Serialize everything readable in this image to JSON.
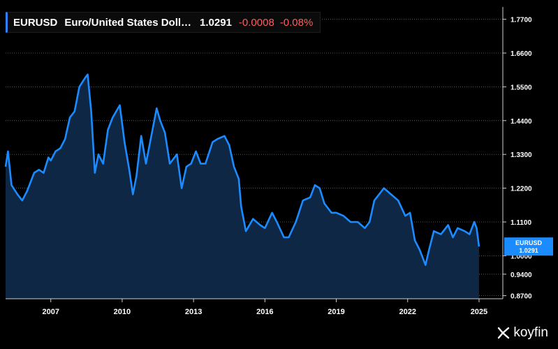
{
  "header": {
    "ticker": "EURUSD",
    "name": "Euro/United States Doll…",
    "price": "1.0291",
    "change": "-0.0008",
    "change_pct": "-0.08%"
  },
  "price_tag": {
    "label": "EURUSD",
    "value": "1.0291"
  },
  "brand": {
    "name": "koyfin"
  },
  "colors": {
    "line": "#1a8cff",
    "area": "#0d2745",
    "negative": "#ff5d5d",
    "tag": "#1a8cff"
  },
  "chart_data": {
    "type": "area",
    "title": "",
    "xlabel": "",
    "ylabel": "",
    "x_ticks": [
      "2007",
      "2010",
      "2013",
      "2016",
      "2019",
      "2022",
      "2025"
    ],
    "y_ticks": [
      "1.7700",
      "1.6600",
      "1.5500",
      "1.4400",
      "1.3300",
      "1.2200",
      "1.1100",
      "1.0000",
      "0.9400",
      "0.8700"
    ],
    "xlim": [
      2005.1,
      2026.0
    ],
    "ylim": [
      0.86,
      1.81
    ],
    "grid": true,
    "series": [
      {
        "x": [
          2005.1,
          2005.2,
          2005.35,
          2005.6,
          2005.8,
          2006.0,
          2006.3,
          2006.5,
          2006.7,
          2006.9,
          2007.0,
          2007.2,
          2007.4,
          2007.6,
          2007.8,
          2008.0,
          2008.2,
          2008.45,
          2008.55,
          2008.7,
          2008.85,
          2009.0,
          2009.2,
          2009.4,
          2009.6,
          2009.9,
          2010.1,
          2010.3,
          2010.45,
          2010.6,
          2010.8,
          2011.0,
          2011.3,
          2011.45,
          2011.6,
          2011.8,
          2012.0,
          2012.3,
          2012.5,
          2012.7,
          2012.9,
          2013.1,
          2013.3,
          2013.5,
          2013.8,
          2014.0,
          2014.3,
          2014.5,
          2014.7,
          2014.9,
          2015.0,
          2015.2,
          2015.5,
          2015.8,
          2016.0,
          2016.3,
          2016.5,
          2016.8,
          2017.0,
          2017.3,
          2017.6,
          2017.9,
          2018.1,
          2018.3,
          2018.5,
          2018.8,
          2019.0,
          2019.3,
          2019.6,
          2019.9,
          2020.2,
          2020.4,
          2020.6,
          2020.9,
          2021.0,
          2021.3,
          2021.6,
          2021.9,
          2022.1,
          2022.3,
          2022.5,
          2022.75,
          2022.9,
          2023.1,
          2023.4,
          2023.7,
          2023.9,
          2024.1,
          2024.4,
          2024.6,
          2024.8,
          2024.9,
          2025.0
        ],
        "values": [
          1.29,
          1.34,
          1.23,
          1.2,
          1.18,
          1.21,
          1.27,
          1.28,
          1.27,
          1.32,
          1.31,
          1.34,
          1.35,
          1.38,
          1.45,
          1.47,
          1.55,
          1.58,
          1.59,
          1.47,
          1.27,
          1.33,
          1.3,
          1.41,
          1.45,
          1.49,
          1.37,
          1.28,
          1.2,
          1.26,
          1.39,
          1.3,
          1.42,
          1.48,
          1.44,
          1.4,
          1.3,
          1.33,
          1.22,
          1.29,
          1.3,
          1.34,
          1.3,
          1.3,
          1.37,
          1.38,
          1.39,
          1.36,
          1.29,
          1.25,
          1.16,
          1.08,
          1.12,
          1.1,
          1.09,
          1.14,
          1.11,
          1.06,
          1.06,
          1.11,
          1.18,
          1.19,
          1.23,
          1.22,
          1.17,
          1.14,
          1.14,
          1.13,
          1.11,
          1.11,
          1.09,
          1.11,
          1.18,
          1.21,
          1.22,
          1.2,
          1.18,
          1.13,
          1.14,
          1.05,
          1.02,
          0.97,
          1.02,
          1.08,
          1.07,
          1.1,
          1.06,
          1.09,
          1.08,
          1.07,
          1.11,
          1.09,
          1.03
        ]
      }
    ]
  }
}
